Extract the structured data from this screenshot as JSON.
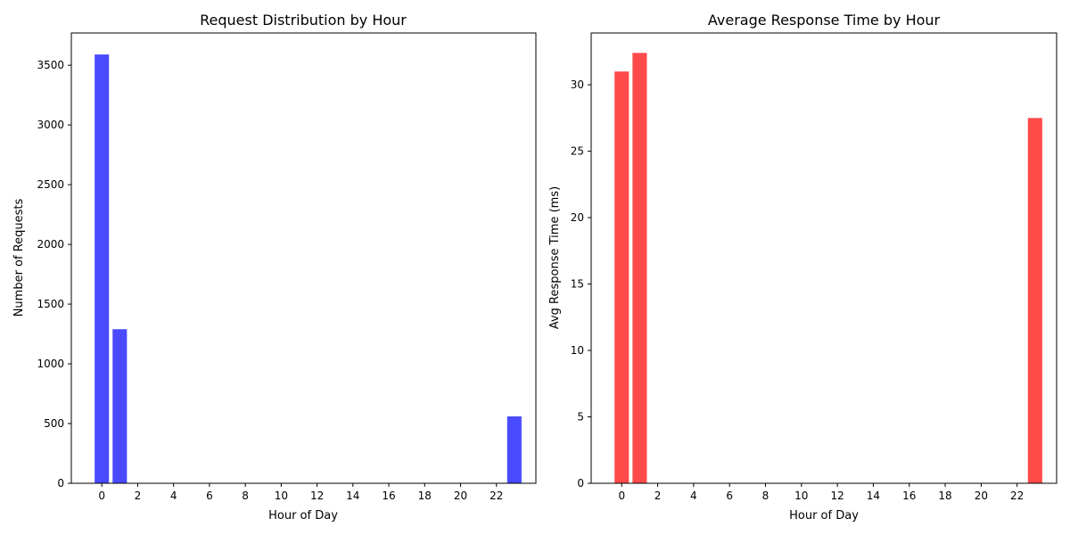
{
  "chart_data": [
    {
      "type": "bar",
      "title": "Request Distribution by Hour",
      "xlabel": "Hour of Day",
      "ylabel": "Number of Requests",
      "x": [
        0,
        1,
        23
      ],
      "values": [
        3590,
        1290,
        560
      ],
      "color": "#4a4aff",
      "xticks": [
        0,
        2,
        4,
        6,
        8,
        10,
        12,
        14,
        16,
        18,
        20,
        22
      ],
      "yticks": [
        0,
        500,
        1000,
        1500,
        2000,
        2500,
        3000,
        3500
      ],
      "xlim": [
        -1.7,
        24.2
      ],
      "ylim": [
        0,
        3770
      ],
      "grid": false
    },
    {
      "type": "bar",
      "title": "Average Response Time by Hour",
      "xlabel": "Hour of Day",
      "ylabel": "Avg Response Time (ms)",
      "x": [
        0,
        1,
        23
      ],
      "values": [
        31.0,
        32.4,
        27.5
      ],
      "color": "#ff4a4a",
      "xticks": [
        0,
        2,
        4,
        6,
        8,
        10,
        12,
        14,
        16,
        18,
        20,
        22
      ],
      "yticks": [
        0,
        5,
        10,
        15,
        20,
        25,
        30
      ],
      "xlim": [
        -1.7,
        24.2
      ],
      "ylim": [
        0,
        33.9
      ],
      "grid": false
    }
  ]
}
